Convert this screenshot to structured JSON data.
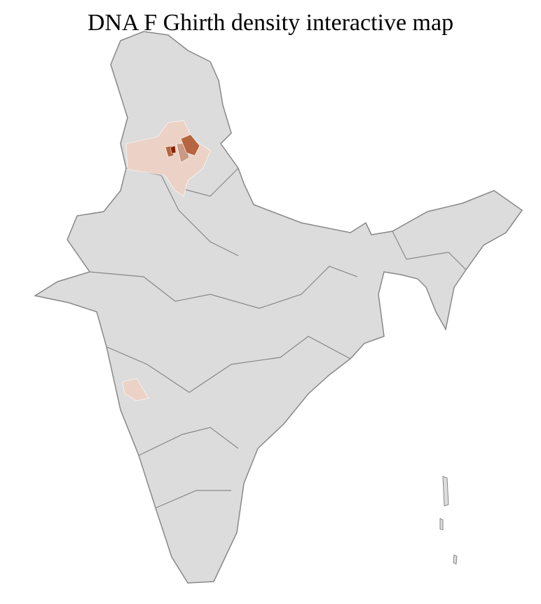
{
  "title": "DNA F Ghirth density interactive map",
  "map": {
    "base_fill": "#dcdcdc",
    "district_border": "#ffffff",
    "state_border": "#888888",
    "density_colors": {
      "very_high": "#8b2500",
      "high": "#b5653f",
      "medium": "#c99a85",
      "low": "#ecd2c6"
    }
  }
}
